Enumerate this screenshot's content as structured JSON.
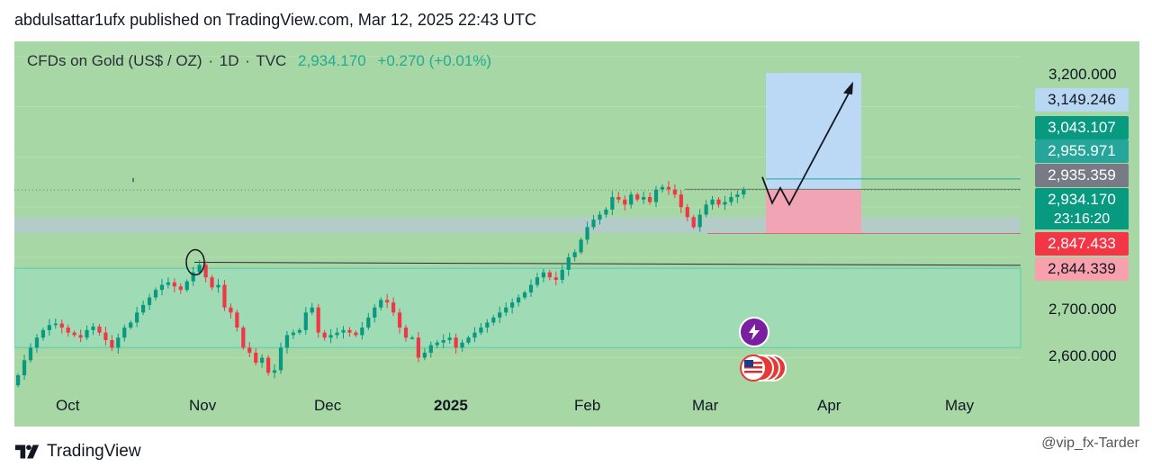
{
  "published_line": "abdulsattar1ufx published on TradingView.com, Mar 12, 2025 22:43 UTC",
  "legend": {
    "symbol": "CFDs on Gold (US$ / OZ)",
    "interval": "1D",
    "source": "TVC",
    "price": "2,934.170",
    "change": "+0.270 (+0.01%)"
  },
  "axis_labels": [
    "3,200.000",
    "2,700.000",
    "2,600.000"
  ],
  "price_tags": [
    {
      "key": "tp",
      "text": "3,149.246",
      "color": "#b8d7f3"
    },
    {
      "key": "t1",
      "text": "3,043.107",
      "color": "#089981"
    },
    {
      "key": "t2",
      "text": "2,955.971",
      "color": "#26a69a"
    },
    {
      "key": "t3",
      "text": "2,935.359",
      "color": "#787b86"
    },
    {
      "key": "cur",
      "text": "2,934.170",
      "color": "#089981"
    },
    {
      "key": "sl",
      "text": "2,847.433",
      "color": "#f23645"
    },
    {
      "key": "sl2",
      "text": "2,844.339",
      "color": "#f7a1ad"
    }
  ],
  "countdown": "23:16:20",
  "months": [
    "Oct",
    "Nov",
    "Dec",
    "2025",
    "Feb",
    "Mar",
    "Apr",
    "May"
  ],
  "footer": {
    "brand": "TradingView",
    "watermark": "@vip_fx-Tarder"
  },
  "colors": {
    "up": "#089981",
    "down": "#f23645",
    "background": "#a6d7a4",
    "target_zone": "#bbd9f5",
    "stop_zone": "#f1a4b3",
    "support_zone": "#9fdbb4"
  },
  "icons": [
    "lightning-icon",
    "us-flag-icon"
  ],
  "chart_data": {
    "type": "candlestick",
    "symbol": "CFDs on Gold (US$ / OZ)",
    "interval": "1D",
    "ylim": [
      2540,
      3230
    ],
    "yticks": [
      2600,
      2700,
      3200
    ],
    "x_months": [
      "Oct",
      "Nov",
      "Dec",
      "2025",
      "Feb",
      "Mar",
      "Apr",
      "May"
    ],
    "annotations": {
      "target_price": 3149.246,
      "entry_price": 2935.359,
      "stop_price": 2847.433,
      "level_1": 3043.107,
      "level_2": 2955.971,
      "level_3": 2844.339,
      "current_price": 2934.17,
      "resistance_line": 2787,
      "supply_zone": [
        2848,
        2880
      ],
      "support_zone": [
        2620,
        2778
      ]
    },
    "closes_approx": [
      2565,
      2595,
      2620,
      2640,
      2655,
      2665,
      2668,
      2660,
      2650,
      2645,
      2640,
      2655,
      2662,
      2650,
      2635,
      2620,
      2640,
      2660,
      2670,
      2690,
      2705,
      2720,
      2735,
      2745,
      2750,
      2742,
      2735,
      2752,
      2770,
      2785,
      2760,
      2740,
      2745,
      2700,
      2690,
      2660,
      2620,
      2610,
      2590,
      2600,
      2570,
      2575,
      2620,
      2645,
      2650,
      2655,
      2690,
      2700,
      2650,
      2640,
      2645,
      2650,
      2655,
      2650,
      2645,
      2660,
      2680,
      2700,
      2715,
      2710,
      2690,
      2660,
      2640,
      2640,
      2600,
      2610,
      2625,
      2630,
      2635,
      2640,
      2620,
      2630,
      2640,
      2650,
      2660,
      2670,
      2680,
      2690,
      2700,
      2710,
      2720,
      2730,
      2745,
      2760,
      2770,
      2760,
      2755,
      2775,
      2800,
      2810,
      2835,
      2860,
      2875,
      2885,
      2895,
      2920,
      2915,
      2905,
      2925,
      2915,
      2920,
      2910,
      2935,
      2940,
      2935,
      2925,
      2900,
      2880,
      2860,
      2885,
      2905,
      2915,
      2905,
      2910,
      2920,
      2925,
      2934
    ]
  }
}
